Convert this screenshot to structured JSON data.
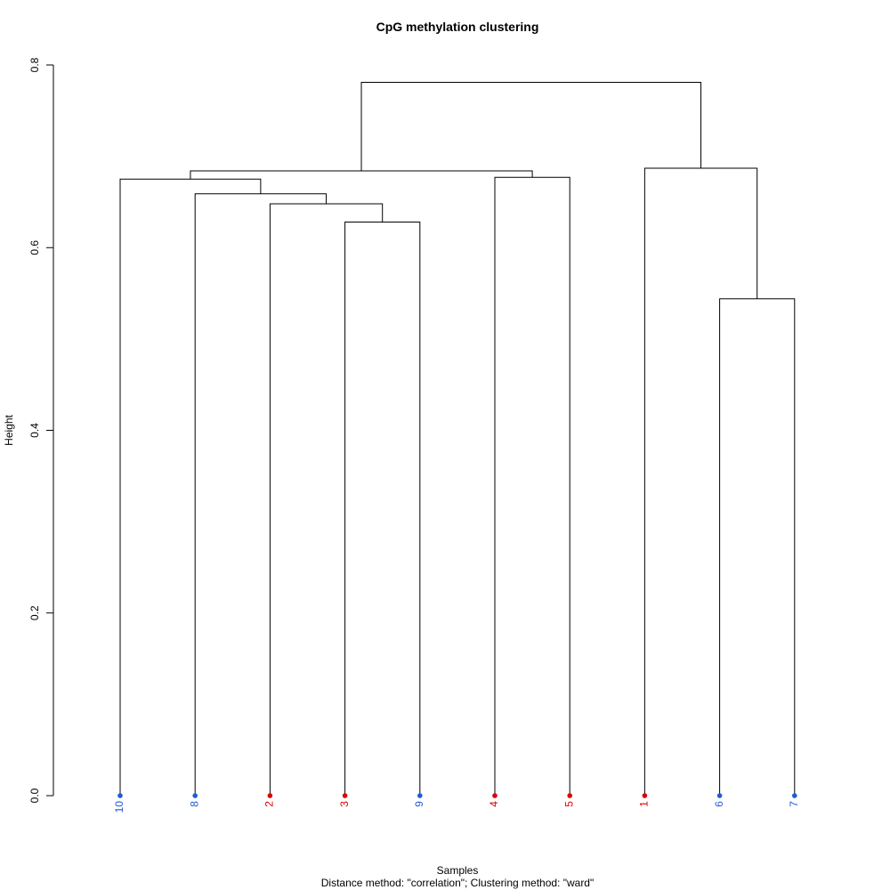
{
  "chart_data": {
    "type": "dendrogram",
    "title": "CpG methylation clustering",
    "xlabel": "Samples",
    "ylabel": "Height",
    "subtitle": "Distance method: \"correlation\"; Clustering method: \"ward\"",
    "ylim": [
      0,
      0.8
    ],
    "yticks": [
      {
        "value": 0.0,
        "label": "0.0"
      },
      {
        "value": 0.2,
        "label": "0.2"
      },
      {
        "value": 0.4,
        "label": "0.4"
      },
      {
        "value": 0.6,
        "label": "0.6"
      },
      {
        "value": 0.8,
        "label": "0.8"
      }
    ],
    "leaf_order": [
      "10",
      "8",
      "2",
      "3",
      "9",
      "4",
      "5",
      "1",
      "6",
      "7"
    ],
    "leaf_groups": {
      "10": "blue",
      "8": "blue",
      "2": "red",
      "3": "red",
      "9": "blue",
      "4": "red",
      "5": "red",
      "1": "red",
      "6": "blue",
      "7": "blue"
    },
    "group_colors": {
      "red": "#dd0000",
      "blue": "#1f5bd6"
    },
    "line_color": "#000000",
    "merges": [
      {
        "id": "m1",
        "left": "3",
        "right": "9",
        "height": 0.628
      },
      {
        "id": "m2",
        "left": "2",
        "right": "m1",
        "height": 0.648
      },
      {
        "id": "m3",
        "left": "8",
        "right": "m2",
        "height": 0.659
      },
      {
        "id": "m4",
        "left": "10",
        "right": "m3",
        "height": 0.675
      },
      {
        "id": "m5",
        "left": "4",
        "right": "5",
        "height": 0.677
      },
      {
        "id": "m6",
        "left": "m4",
        "right": "m5",
        "height": 0.684
      },
      {
        "id": "m7",
        "left": "6",
        "right": "7",
        "height": 0.544
      },
      {
        "id": "m8",
        "left": "1",
        "right": "m7",
        "height": 0.687
      },
      {
        "id": "m9",
        "left": "m6",
        "right": "m8",
        "height": 0.781
      }
    ]
  }
}
